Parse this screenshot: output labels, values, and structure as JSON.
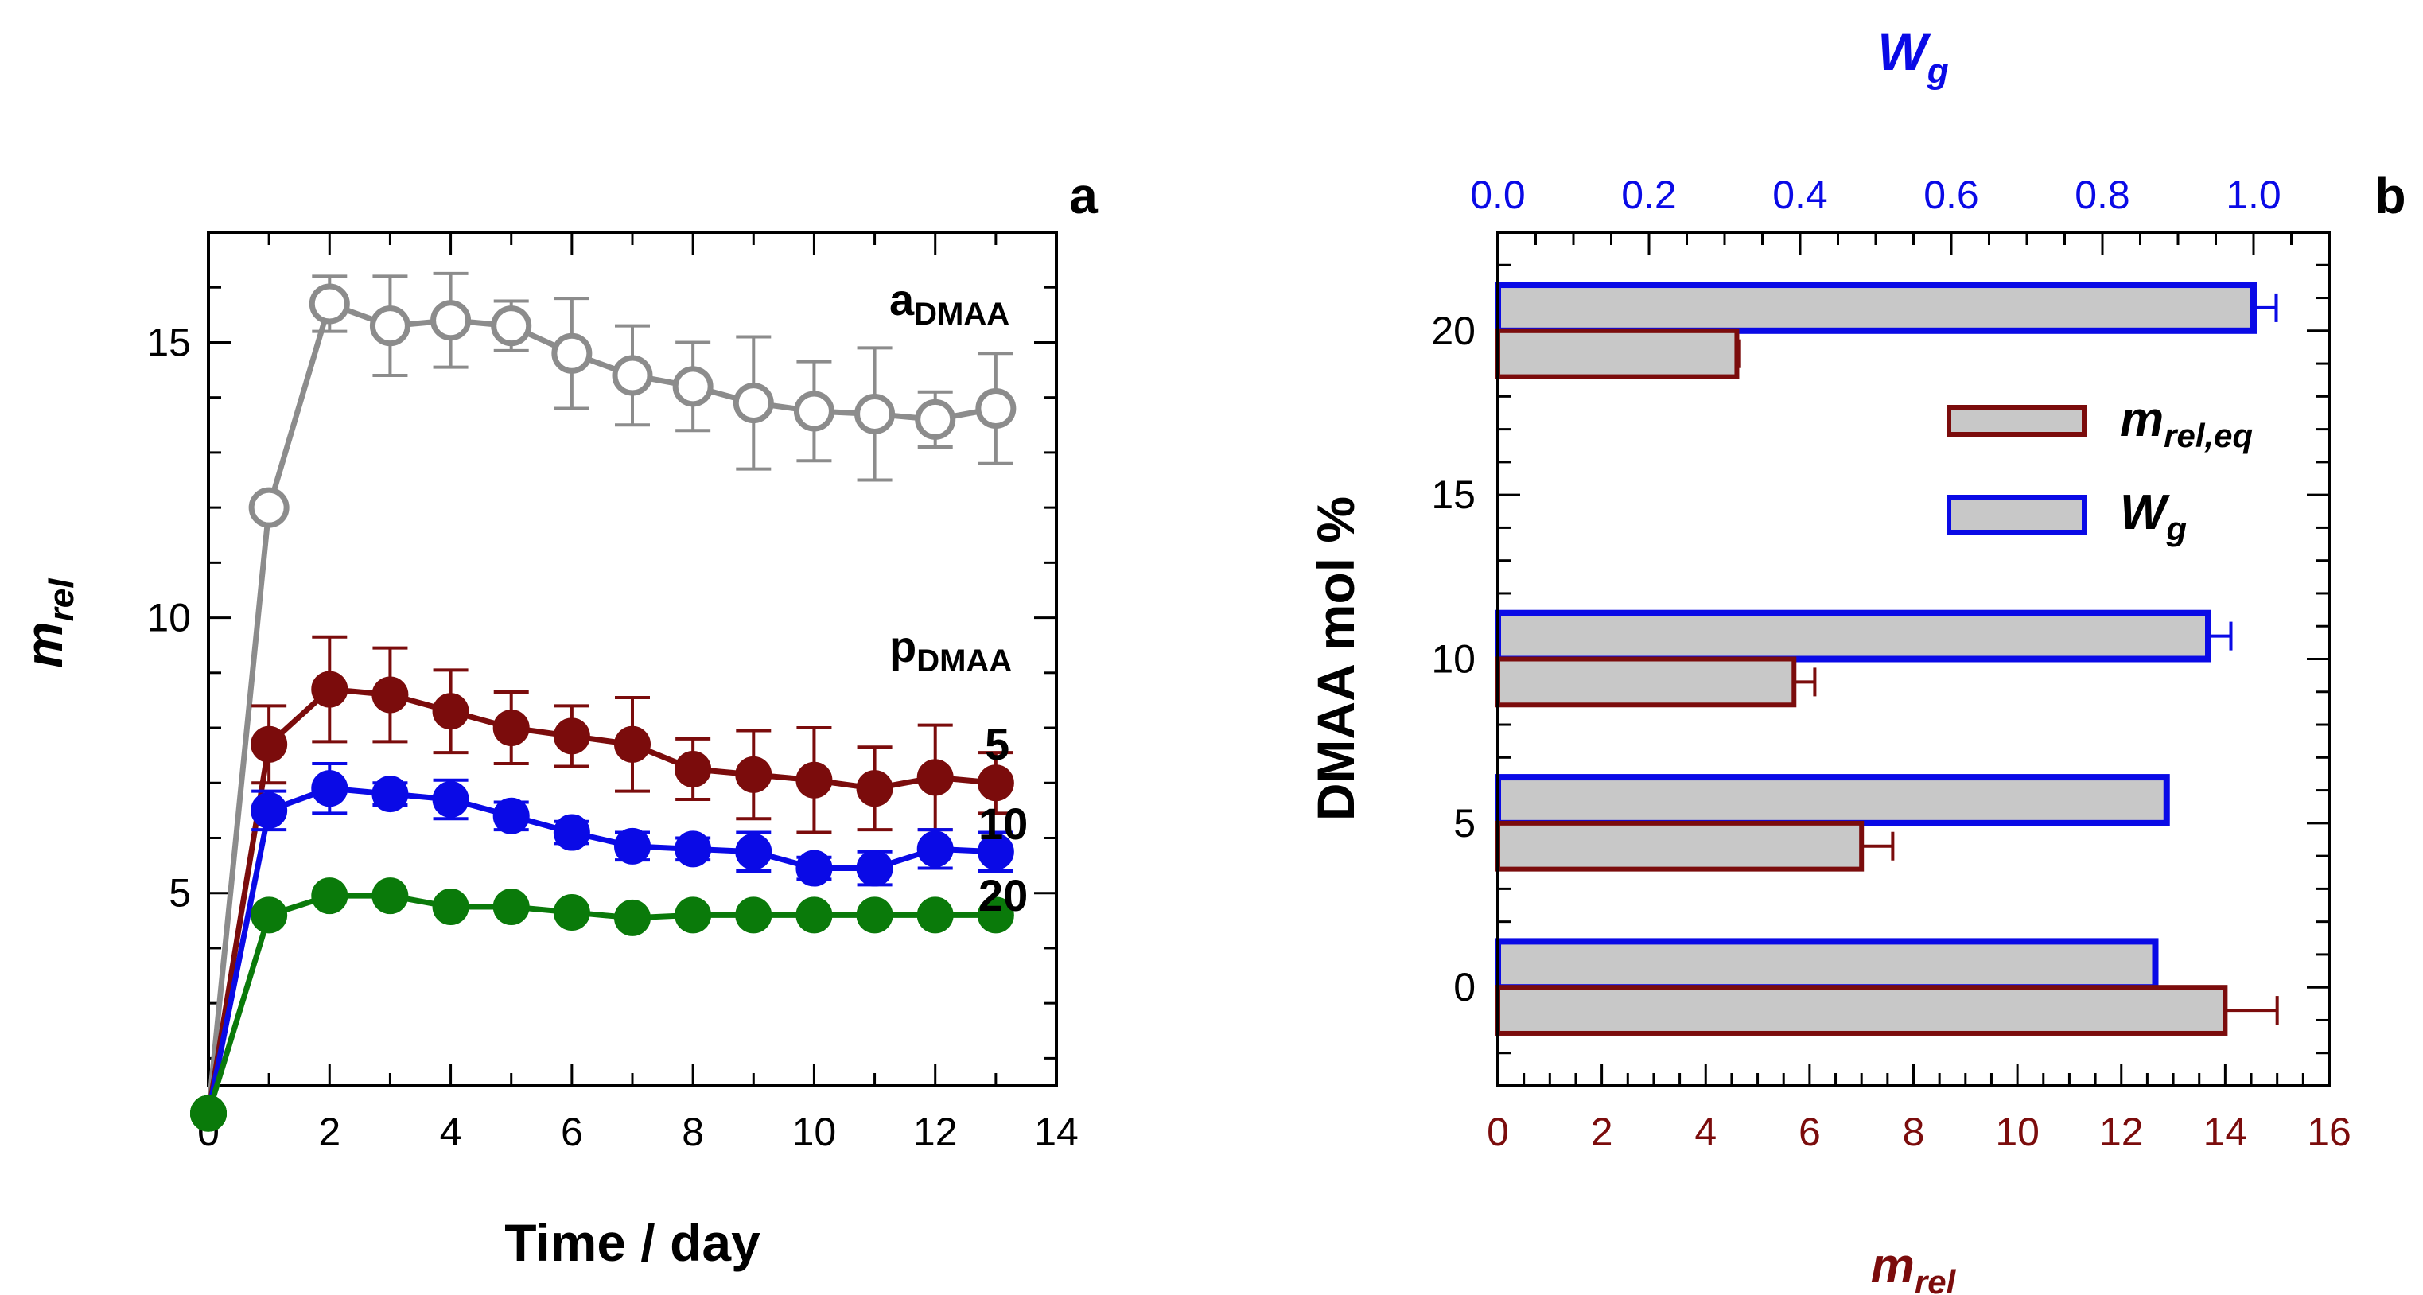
{
  "chart_data": [
    {
      "panel": "a",
      "type": "line",
      "xlabel": "Time / day",
      "ylabel": {
        "main": "m",
        "sub": "rel"
      },
      "xlim": [
        0,
        14
      ],
      "ylim": [
        1.5,
        17
      ],
      "xticks": [
        0,
        2,
        4,
        6,
        8,
        10,
        12,
        14
      ],
      "yticks": [
        5,
        10,
        15
      ],
      "series": [
        {
          "name": "aDMAA",
          "label_main": "a",
          "label_sub": "DMAA",
          "color": "#8c8c8c",
          "marker": "open-circle",
          "x": [
            0,
            1,
            2,
            3,
            4,
            5,
            6,
            7,
            8,
            9,
            10,
            11,
            12,
            13
          ],
          "y": [
            1,
            12.0,
            15.7,
            15.3,
            15.4,
            15.3,
            14.8,
            14.4,
            14.2,
            13.9,
            13.75,
            13.7,
            13.6,
            13.8
          ],
          "err": [
            0,
            0,
            0.5,
            0.9,
            0.85,
            0.45,
            1.0,
            0.9,
            0.8,
            1.2,
            0.9,
            1.2,
            0.5,
            1.0
          ]
        },
        {
          "name": "pDMAA 5",
          "label": "5",
          "color": "#7b0c0c",
          "marker": "filled-circle",
          "x": [
            0,
            1,
            2,
            3,
            4,
            5,
            6,
            7,
            8,
            9,
            10,
            11,
            12,
            13
          ],
          "y": [
            1,
            7.7,
            8.7,
            8.6,
            8.3,
            8.0,
            7.85,
            7.7,
            7.25,
            7.15,
            7.05,
            6.9,
            7.1,
            7.0
          ],
          "err": [
            0,
            0.7,
            0.95,
            0.85,
            0.75,
            0.65,
            0.55,
            0.85,
            0.55,
            0.8,
            0.95,
            0.75,
            0.95,
            0.55
          ]
        },
        {
          "name": "pDMAA 10",
          "label": "10",
          "color": "#0a0ae6",
          "marker": "filled-circle",
          "x": [
            0,
            1,
            2,
            3,
            4,
            5,
            6,
            7,
            8,
            9,
            10,
            11,
            12,
            13
          ],
          "y": [
            1,
            6.5,
            6.9,
            6.8,
            6.7,
            6.4,
            6.1,
            5.85,
            5.8,
            5.75,
            5.45,
            5.45,
            5.8,
            5.75
          ],
          "err": [
            0,
            0.35,
            0.45,
            0.2,
            0.35,
            0.25,
            0.2,
            0.25,
            0.2,
            0.35,
            0.2,
            0.3,
            0.35,
            0.35
          ]
        },
        {
          "name": "pDMAA 20",
          "label": "20",
          "color": "#0a7a0a",
          "marker": "filled-circle",
          "x": [
            0,
            1,
            2,
            3,
            4,
            5,
            6,
            7,
            8,
            9,
            10,
            11,
            12,
            13
          ],
          "y": [
            1,
            4.6,
            4.95,
            4.95,
            4.75,
            4.75,
            4.65,
            4.55,
            4.6,
            4.6,
            4.6,
            4.6,
            4.6,
            4.6
          ],
          "err": [
            0,
            0,
            0,
            0,
            0,
            0,
            0,
            0,
            0,
            0,
            0,
            0,
            0,
            0
          ]
        }
      ],
      "group_label": {
        "main": "p",
        "sub": "DMAA"
      },
      "panel_label": "a"
    },
    {
      "panel": "b",
      "type": "bar",
      "orientation": "horizontal",
      "ylabel": "DMAA mol %",
      "bottom_xlabel": {
        "main": "m",
        "sub": "rel"
      },
      "top_xlabel": {
        "main": "W",
        "sub": "g"
      },
      "bottom_xlim": [
        0,
        16
      ],
      "top_xlim": [
        0.0,
        1.1
      ],
      "ylim": [
        -3,
        23
      ],
      "yticks": [
        0,
        5,
        10,
        15,
        20
      ],
      "bottom_xticks": [
        "0",
        "2",
        "4",
        "6",
        "8",
        "10",
        "12",
        "14",
        "16"
      ],
      "top_xticks": [
        "0.0",
        "0.2",
        "0.4",
        "0.6",
        "0.8",
        "1.0"
      ],
      "categories": [
        0,
        5,
        10,
        20
      ],
      "series": [
        {
          "name": "m_rel,eq",
          "legend_main": "m",
          "legend_sub": "rel,eq",
          "axis": "bottom",
          "edge_color": "#7b0c0c",
          "fill": "#c8c8c8",
          "values": [
            14.0,
            7.0,
            5.7,
            4.6
          ],
          "err": [
            1.0,
            0.6,
            0.4,
            0.05
          ]
        },
        {
          "name": "Wg",
          "legend_main": "W",
          "legend_sub": "g",
          "axis": "top",
          "edge_color": "#0a0ae6",
          "fill": "#c8c8c8",
          "values": [
            0.87,
            0.885,
            0.94,
            1.0
          ],
          "err": [
            0.0,
            0.0,
            0.03,
            0.03
          ]
        }
      ],
      "panel_label": "b"
    }
  ]
}
